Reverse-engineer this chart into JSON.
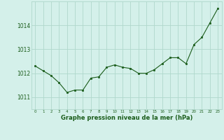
{
  "x": [
    0,
    1,
    2,
    3,
    4,
    5,
    6,
    7,
    8,
    9,
    10,
    11,
    12,
    13,
    14,
    15,
    16,
    17,
    18,
    19,
    20,
    21,
    22,
    23
  ],
  "y": [
    1012.3,
    1012.1,
    1011.9,
    1011.6,
    1011.2,
    1011.3,
    1011.3,
    1011.8,
    1011.85,
    1012.25,
    1012.35,
    1012.25,
    1012.2,
    1012.0,
    1012.0,
    1012.15,
    1012.4,
    1012.65,
    1012.65,
    1012.4,
    1013.2,
    1013.5,
    1014.1,
    1014.7
  ],
  "line_color": "#1a5c1a",
  "marker_color": "#1a5c1a",
  "bg_color": "#d4f0ea",
  "grid_color": "#b0d8cc",
  "xlabel": "Graphe pression niveau de la mer (hPa)",
  "xlabel_color": "#1a5c1a",
  "ylabel_ticks": [
    1011,
    1012,
    1013,
    1014
  ],
  "xlim": [
    -0.5,
    23.5
  ],
  "ylim": [
    1010.5,
    1015.0
  ],
  "tick_color": "#1a5c1a",
  "xtick_labels": [
    "0",
    "1",
    "2",
    "3",
    "4",
    "5",
    "6",
    "7",
    "8",
    "9",
    "10",
    "11",
    "12",
    "13",
    "14",
    "15",
    "16",
    "17",
    "18",
    "19",
    "20",
    "21",
    "22",
    "23"
  ]
}
